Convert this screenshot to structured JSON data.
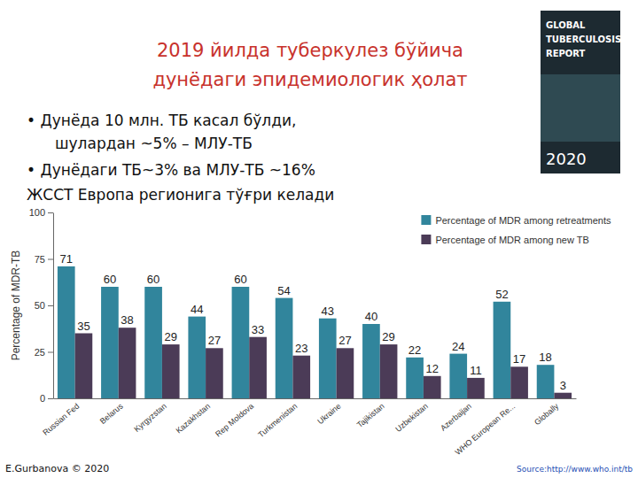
{
  "chart_data": {
    "type": "bar",
    "title": "2019 йилда туберкулез бўйича дунёдаги эпидемиологик ҳолат",
    "annotations": [
      "• Дунёда  10 млн. ТБ касал бўлди,",
      "шулардан ~5% – МЛУ-ТБ",
      "• Дунёдаги ТБ~3%  ва  МЛУ-ТБ ~16%",
      "ЖССТ  Европа регионига тўғри келади",
      "E.Gurbanova © 2020",
      "Source:http://www.who.int/tb",
      "GLOBAL",
      "TUBERCULOSIS",
      "REPORT",
      "2020"
    ],
    "y_label": "Percentage of MDR-TB",
    "categories": [
      "Russian Fed",
      "Belarus",
      "Kyrgyzstan",
      "Kazakhstan",
      "Rep Moldova",
      "Turkmenistan",
      "Ukraine",
      "Tajikistan",
      "Uzbekistan",
      "Azerbaijan",
      "WHO European Re...",
      "Globally"
    ],
    "series": [
      {
        "name": "Percentage of MDR among retreatments",
        "color": "#31859c",
        "values": [
          71,
          60,
          60,
          44,
          60,
          54,
          43,
          40,
          22,
          24,
          52,
          18
        ]
      },
      {
        "name": "Percentage of MDR among new TB",
        "color": "#4b3b57",
        "values": [
          35,
          38,
          29,
          27,
          33,
          23,
          27,
          29,
          12,
          11,
          17,
          3
        ]
      }
    ],
    "ylim": [
      0,
      100
    ],
    "yticks": [
      0,
      25,
      50,
      75,
      100
    ],
    "grid": false,
    "legend": "top-right",
    "data_labels": true
  }
}
